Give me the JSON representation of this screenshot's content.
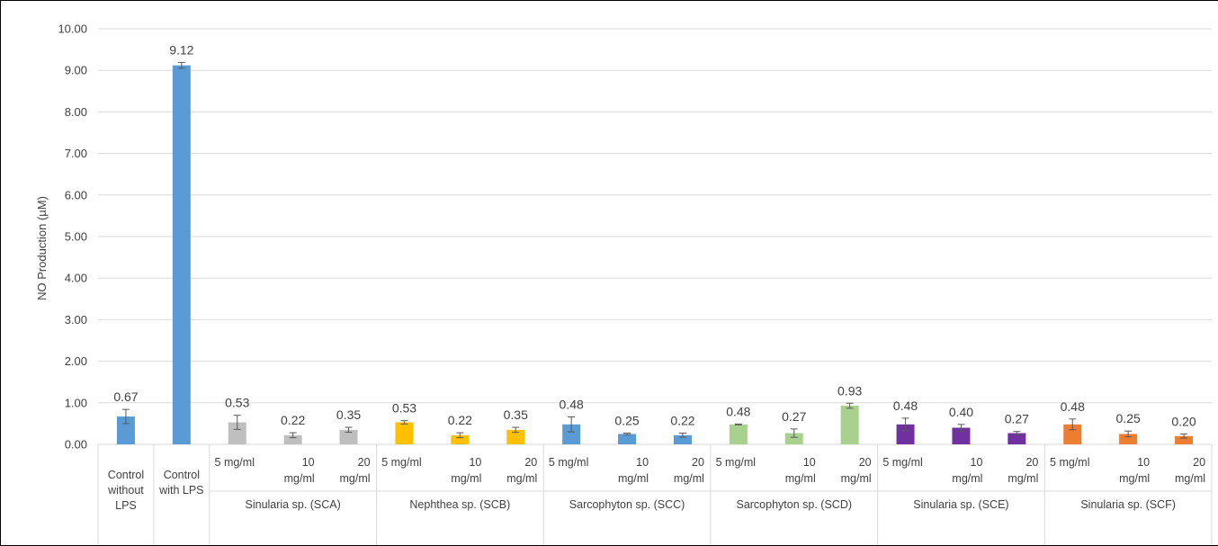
{
  "chart_data": {
    "type": "bar",
    "title": "",
    "ylabel": "NO Production (µM)",
    "xlabel": "",
    "ylim": [
      0,
      10
    ],
    "yticks": [
      "0.00",
      "1.00",
      "2.00",
      "3.00",
      "4.00",
      "5.00",
      "6.00",
      "7.00",
      "8.00",
      "9.00",
      "10.00"
    ],
    "grid": true,
    "colors": {
      "control": "#5b9bd5",
      "SCA": "#bfbfbf",
      "SCB": "#ffc000",
      "SCC": "#5b9bd5",
      "SCD": "#a9d18e",
      "SCE": "#7030a0",
      "SCF": "#ed7d31"
    },
    "groups": [
      {
        "key": "control",
        "label": "",
        "bars": [
          {
            "category": [
              "Control",
              "without",
              "LPS"
            ],
            "value": 0.67,
            "label": "0.67",
            "error": 0.17
          },
          {
            "category": [
              "Control",
              "with LPS"
            ],
            "value": 9.12,
            "label": "9.12",
            "error": 0.07
          }
        ]
      },
      {
        "key": "SCA",
        "label": "Sinularia sp. (SCA)",
        "bars": [
          {
            "category": [
              "5 mg/ml"
            ],
            "value": 0.53,
            "label": "0.53",
            "error": 0.17
          },
          {
            "category": [
              "10",
              "mg/ml"
            ],
            "value": 0.22,
            "label": "0.22",
            "error": 0.06
          },
          {
            "category": [
              "20",
              "mg/ml"
            ],
            "value": 0.35,
            "label": "0.35",
            "error": 0.06
          }
        ]
      },
      {
        "key": "SCB",
        "label": "Nephthea sp. (SCB)",
        "bars": [
          {
            "category": [
              "5 mg/ml"
            ],
            "value": 0.53,
            "label": "0.53",
            "error": 0.04
          },
          {
            "category": [
              "10",
              "mg/ml"
            ],
            "value": 0.22,
            "label": "0.22",
            "error": 0.06
          },
          {
            "category": [
              "20",
              "mg/ml"
            ],
            "value": 0.35,
            "label": "0.35",
            "error": 0.06
          }
        ]
      },
      {
        "key": "SCC",
        "label": "Sarcophyton sp. (SCC)",
        "bars": [
          {
            "category": [
              "5 mg/ml"
            ],
            "value": 0.48,
            "label": "0.48",
            "error": 0.18
          },
          {
            "category": [
              "10",
              "mg/ml"
            ],
            "value": 0.25,
            "label": "0.25",
            "error": 0.02
          },
          {
            "category": [
              "20",
              "mg/ml"
            ],
            "value": 0.22,
            "label": "0.22",
            "error": 0.05
          }
        ]
      },
      {
        "key": "SCD",
        "label": "Sarcophyton sp. (SCD)",
        "bars": [
          {
            "category": [
              "5 mg/ml"
            ],
            "value": 0.48,
            "label": "0.48",
            "error": 0.01
          },
          {
            "category": [
              "10",
              "mg/ml"
            ],
            "value": 0.27,
            "label": "0.27",
            "error": 0.1
          },
          {
            "category": [
              "20",
              "mg/ml"
            ],
            "value": 0.93,
            "label": "0.93",
            "error": 0.06
          }
        ]
      },
      {
        "key": "SCE",
        "label": "Sinularia sp. (SCE)",
        "bars": [
          {
            "category": [
              "5 mg/ml"
            ],
            "value": 0.48,
            "label": "0.48",
            "error": 0.15
          },
          {
            "category": [
              "10",
              "mg/ml"
            ],
            "value": 0.4,
            "label": "0.40",
            "error": 0.08
          },
          {
            "category": [
              "20",
              "mg/ml"
            ],
            "value": 0.27,
            "label": "0.27",
            "error": 0.04
          }
        ]
      },
      {
        "key": "SCF",
        "label": "Sinularia sp. (SCF)",
        "bars": [
          {
            "category": [
              "5 mg/ml"
            ],
            "value": 0.48,
            "label": "0.48",
            "error": 0.13
          },
          {
            "category": [
              "10",
              "mg/ml"
            ],
            "value": 0.25,
            "label": "0.25",
            "error": 0.07
          },
          {
            "category": [
              "20",
              "mg/ml"
            ],
            "value": 0.2,
            "label": "0.20",
            "error": 0.05
          }
        ]
      }
    ]
  }
}
